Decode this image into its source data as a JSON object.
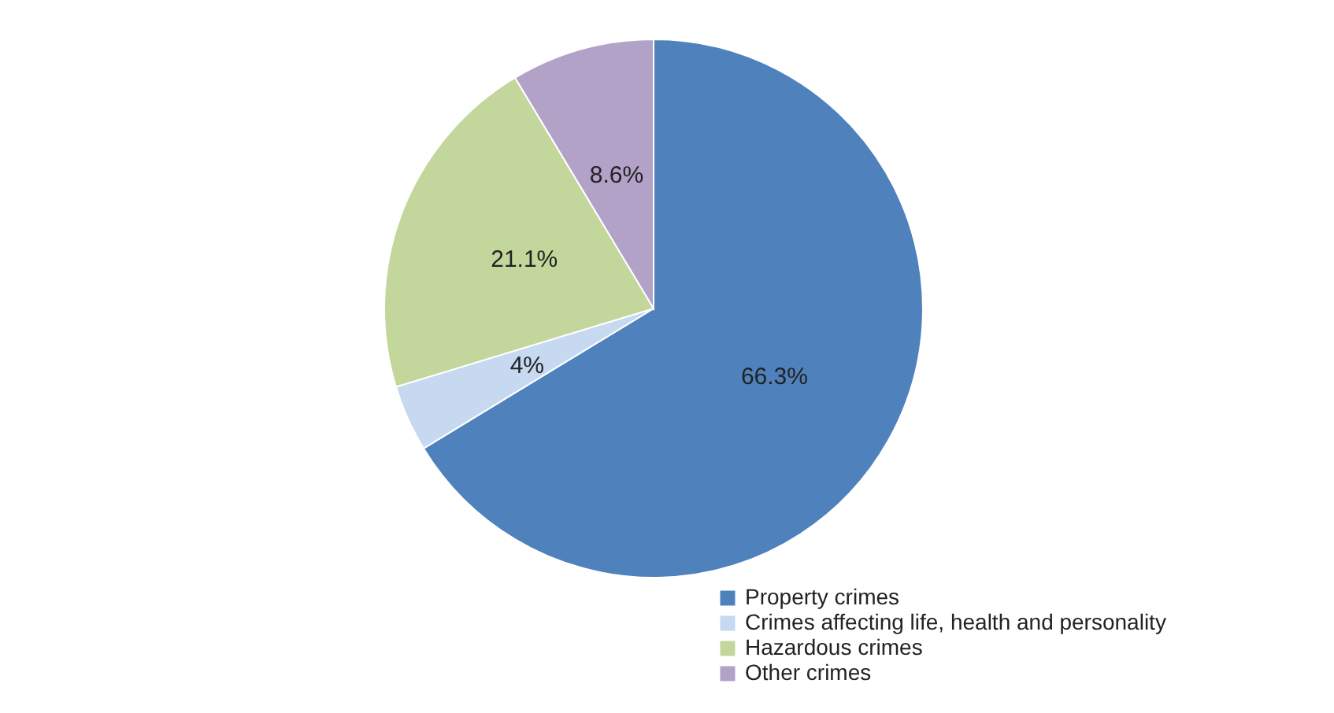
{
  "chart_data": {
    "type": "pie",
    "categories": [
      "Property crimes",
      "Crimes affecting life, health and personality",
      "Hazardous crimes",
      "Other crimes"
    ],
    "values": [
      66.3,
      4,
      21.1,
      8.6
    ],
    "colors": [
      "#4f81bd",
      "#c6d9f1",
      "#c3d69b",
      "#b2a2c7"
    ],
    "value_labels": [
      "66.3%",
      "4%",
      "21.1%",
      "8.6%"
    ],
    "legend": "bottom right"
  }
}
